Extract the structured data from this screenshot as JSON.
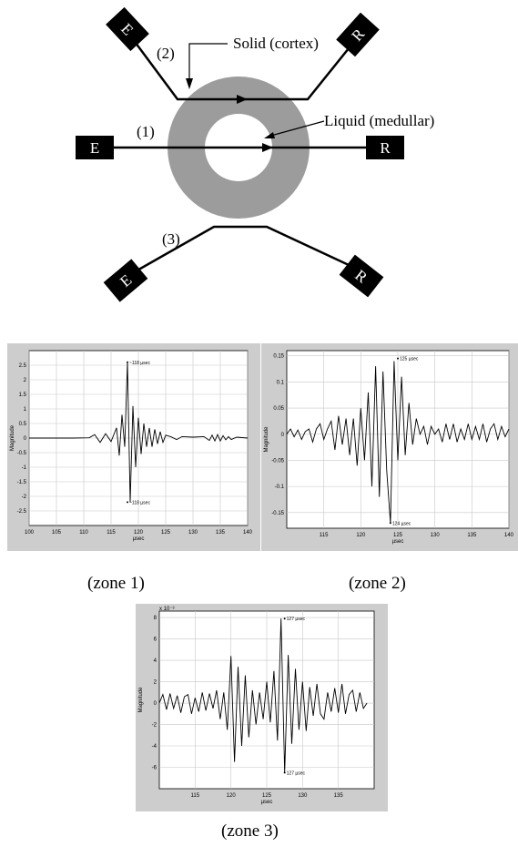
{
  "diagram": {
    "emitter_label": "E",
    "receiver_label": "R",
    "path_labels": [
      "(1)",
      "(2)",
      "(3)"
    ],
    "solid_label": "Solid (cortex)",
    "liquid_label": "Liquid (medullar)",
    "colors": {
      "ring": "#9c9c9c",
      "box": "#000000",
      "line": "#000000"
    }
  },
  "captions": {
    "zone1": "(zone 1)",
    "zone2": "(zone 2)",
    "zone3": "(zone 3)"
  },
  "chart_data": [
    {
      "type": "line",
      "name": "zone 1",
      "xlabel": "µsec",
      "ylabel": "Magnitude",
      "xlim": [
        100,
        140
      ],
      "ylim": [
        -3,
        3
      ],
      "xticks": [
        100,
        105,
        110,
        115,
        120,
        125,
        130,
        135,
        140
      ],
      "yticks": [
        -2.5,
        -2,
        -1.5,
        -1,
        -0.5,
        0,
        0.5,
        1,
        1.5,
        2,
        2.5
      ],
      "grid": true,
      "series": [
        {
          "x": [
            100,
            104,
            108,
            111,
            112,
            113,
            114,
            115,
            116,
            116.5,
            117,
            117.5,
            118,
            118.5,
            119,
            119.5,
            120,
            120.5,
            121,
            121.5,
            122,
            122.5,
            123,
            123.5,
            124,
            124.5,
            125,
            126,
            127,
            128,
            130,
            132,
            133,
            133.5,
            134,
            134.5,
            135,
            135.5,
            136,
            136.5,
            137,
            138,
            140
          ],
          "y": [
            0,
            0,
            0,
            0.01,
            0.12,
            -0.15,
            0.15,
            -0.12,
            0.35,
            -0.6,
            0.8,
            -0.3,
            2.6,
            -2.2,
            1.1,
            -1.0,
            0.7,
            -0.55,
            0.5,
            -0.3,
            0.35,
            -0.3,
            0.3,
            -0.2,
            0.22,
            -0.15,
            0.1,
            0.04,
            -0.05,
            0.05,
            0.03,
            0.05,
            -0.08,
            0.1,
            -0.1,
            0.12,
            -0.1,
            0.08,
            -0.06,
            0.05,
            -0.05,
            0.03,
            0
          ]
        }
      ],
      "annotations": [
        {
          "x": 118,
          "y": 2.6,
          "text": "~118 µsec"
        },
        {
          "x": 118,
          "y": -2.2,
          "text": "~118 µsec"
        }
      ]
    },
    {
      "type": "line",
      "name": "zone 2",
      "xlabel": "µsec",
      "ylabel": "Magnitude",
      "xlim": [
        110,
        140
      ],
      "ylim": [
        -0.18,
        0.16
      ],
      "xticks": [
        115,
        120,
        125,
        130,
        135,
        140
      ],
      "yticks": [
        -0.15,
        -0.1,
        -0.05,
        0,
        0.05,
        0.1,
        0.15
      ],
      "grid": true,
      "series": [
        {
          "x": [
            110,
            110.5,
            111,
            111.5,
            112,
            112.5,
            113,
            113.5,
            114,
            114.5,
            115,
            115.5,
            116,
            116.5,
            117,
            117.5,
            118,
            118.5,
            119,
            119.5,
            120,
            120.5,
            121,
            121.5,
            122,
            122.5,
            123,
            123.5,
            124,
            124.5,
            125,
            125.5,
            126,
            126.5,
            127,
            127.5,
            128,
            128.5,
            129,
            129.5,
            130,
            130.5,
            131,
            131.5,
            132,
            132.5,
            133,
            133.5,
            134,
            134.5,
            135,
            135.5,
            136,
            136.5,
            137,
            137.5,
            138,
            138.5,
            139,
            139.5,
            140
          ],
          "y": [
            0,
            0.01,
            -0.005,
            0.008,
            -0.01,
            0.005,
            0.01,
            -0.015,
            0.01,
            0.02,
            -0.01,
            0.01,
            0.025,
            -0.03,
            0.035,
            -0.02,
            0.03,
            -0.04,
            0.03,
            -0.06,
            0.05,
            -0.05,
            0.08,
            -0.1,
            0.13,
            -0.12,
            0.12,
            -0.07,
            -0.17,
            0.14,
            -0.05,
            0.11,
            -0.04,
            0.06,
            -0.02,
            0.03,
            0,
            0.015,
            -0.02,
            0.015,
            0,
            0.01,
            -0.015,
            0.02,
            -0.01,
            0.02,
            -0.015,
            0.01,
            -0.01,
            0.02,
            -0.01,
            0.015,
            -0.01,
            0.02,
            -0.015,
            0.01,
            0.02,
            -0.01,
            0.015,
            -0.005,
            0.01
          ]
        }
      ],
      "annotations": [
        {
          "x": 125,
          "y": 0.145,
          "text": "125 µsec"
        },
        {
          "x": 124,
          "y": -0.17,
          "text": "124 µsec"
        }
      ]
    },
    {
      "type": "line",
      "name": "zone 3",
      "xlabel": "µsec",
      "ylabel": "Magnitude",
      "y_scale_label": "x 10⁻³",
      "xlim": [
        110,
        140
      ],
      "ylim": [
        -8,
        8.6
      ],
      "xticks": [
        115,
        120,
        125,
        130,
        135
      ],
      "yticks": [
        -6,
        -4,
        -2,
        0,
        2,
        4,
        6,
        8
      ],
      "grid": true,
      "series": [
        {
          "x": [
            110,
            110.5,
            111,
            111.5,
            112,
            112.5,
            113,
            113.5,
            114,
            114.5,
            115,
            115.5,
            116,
            116.5,
            117,
            117.5,
            118,
            118.5,
            119,
            119.5,
            120,
            120.5,
            121,
            121.5,
            122,
            122.5,
            123,
            123.5,
            124,
            124.5,
            125,
            125.5,
            126,
            126.5,
            127,
            127.5,
            128,
            128.5,
            129,
            129.5,
            130,
            130.5,
            131,
            131.5,
            132,
            132.5,
            133,
            133.5,
            134,
            134.5,
            135,
            135.5,
            136,
            136.5,
            137,
            137.5,
            138,
            138.5,
            139
          ],
          "y": [
            0,
            0.8,
            -0.6,
            0.9,
            -0.5,
            0.7,
            -0.9,
            0.6,
            0.8,
            -1.0,
            0.5,
            -0.8,
            1.0,
            -0.7,
            0.9,
            -0.5,
            1.2,
            -1.5,
            1.0,
            -2.5,
            4.4,
            -5.5,
            3.4,
            -4.0,
            2.6,
            -3.2,
            1.2,
            -2.0,
            1.0,
            -1.5,
            2.0,
            -1.8,
            3.0,
            -3.5,
            7.9,
            -6.5,
            4.5,
            -3.8,
            3.2,
            -2.5,
            2.0,
            -2.6,
            1.5,
            -1.2,
            1.8,
            -1.0,
            -1.5,
            1.0,
            -0.8,
            1.4,
            -0.9,
            1.8,
            -1.0,
            0.8,
            1.2,
            -0.8,
            1.0,
            -0.5,
            0
          ]
        }
      ],
      "annotations": [
        {
          "x": 127.5,
          "y": 7.9,
          "text": "127 µsec"
        },
        {
          "x": 127.5,
          "y": -6.5,
          "text": "127 µsec"
        }
      ]
    }
  ]
}
